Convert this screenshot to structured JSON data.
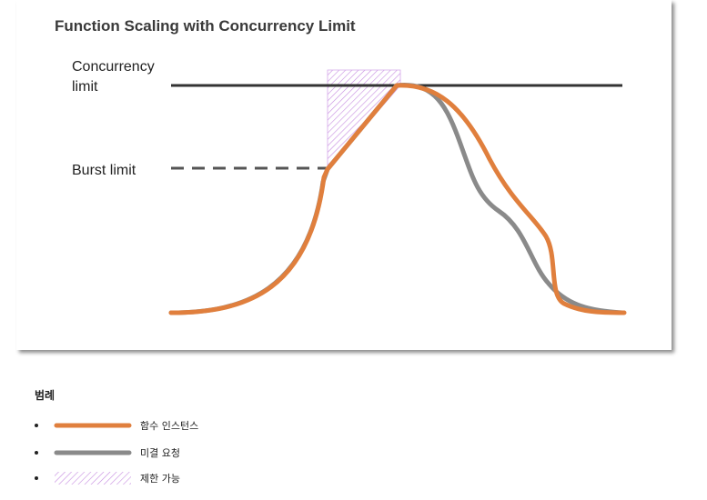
{
  "diagram": {
    "title": "Function Scaling with Concurrency Limit",
    "labels": {
      "concurrency_line1": "Concurrency",
      "concurrency_line2": "limit",
      "burst": "Burst limit"
    },
    "colors": {
      "function_instances": "#e07f3d",
      "open_requests": "#8a8a8a",
      "throttled": "#c58be0",
      "limit_line": "#333333"
    }
  },
  "legend": {
    "title": "범례",
    "items": [
      {
        "label": "함수 인스턴스",
        "style": "orange-line"
      },
      {
        "label": "미결 요청",
        "style": "gray-line"
      },
      {
        "label": "제한 가능",
        "style": "hatched-purple"
      }
    ]
  }
}
